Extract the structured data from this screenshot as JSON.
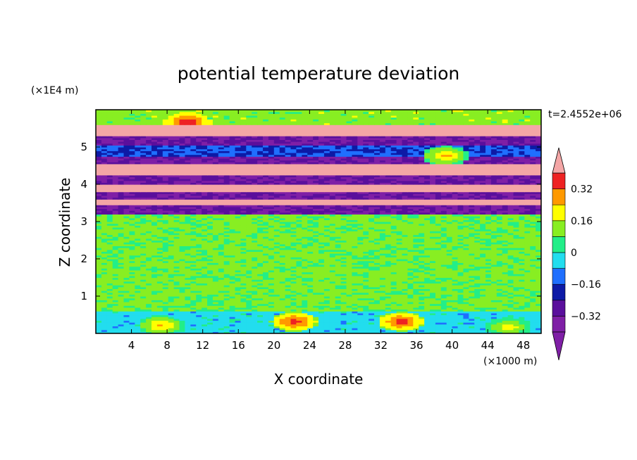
{
  "chart_data": {
    "type": "heatmap",
    "title": "potential temperature deviation",
    "time_label": "t=2.4552e+06",
    "xlabel": "X coordinate",
    "ylabel": "Z coordinate",
    "x_unit": "(×1000 m)",
    "y_unit": "(×1E4 m)",
    "xlim": [
      0,
      50
    ],
    "ylim": [
      0,
      6
    ],
    "x_ticks": [
      "4",
      "8",
      "12",
      "16",
      "20",
      "24",
      "28",
      "32",
      "36",
      "40",
      "44",
      "48"
    ],
    "y_ticks": [
      "1",
      "2",
      "3",
      "4",
      "5"
    ],
    "colorbar": {
      "levels": [
        -0.4,
        -0.32,
        -0.24,
        -0.16,
        -0.08,
        0,
        0.08,
        0.16,
        0.24,
        0.32,
        0.4
      ],
      "colors": [
        "#7f1fa6",
        "#5a0f9c",
        "#0d1aa6",
        "#1f6fff",
        "#22ddee",
        "#22ee88",
        "#88ee22",
        "#ffff00",
        "#ff9900",
        "#ee2222",
        "#f4a6a6"
      ],
      "tick_labels": [
        "0.32",
        "0.16",
        "0",
        "−0.16",
        "−0.32"
      ],
      "tick_values": [
        0.32,
        0.16,
        0,
        -0.16,
        -0.32
      ]
    },
    "bands": [
      {
        "z": [
          0.0,
          0.6
        ],
        "value": -0.12,
        "note": "mixed blue/green layer with warm cores near x=22 and x=34"
      },
      {
        "z": [
          0.6,
          3.2
        ],
        "value": 0.02
      },
      {
        "z": [
          3.2,
          3.45
        ],
        "value": -0.4
      },
      {
        "z": [
          3.45,
          3.6
        ],
        "value": 0.4
      },
      {
        "z": [
          3.6,
          3.8
        ],
        "value": -0.4
      },
      {
        "z": [
          3.8,
          4.0
        ],
        "value": 0.4
      },
      {
        "z": [
          4.0,
          4.25
        ],
        "value": -0.4
      },
      {
        "z": [
          4.25,
          4.55
        ],
        "value": 0.4
      },
      {
        "z": [
          4.55,
          4.75
        ],
        "value": -0.4
      },
      {
        "z": [
          4.75,
          5.05
        ],
        "value": -0.24
      },
      {
        "z": [
          5.05,
          5.3
        ],
        "value": -0.4
      },
      {
        "z": [
          5.3,
          5.6
        ],
        "value": 0.4
      },
      {
        "z": [
          5.6,
          6.0
        ],
        "value": 0.04
      }
    ],
    "hotspots": [
      {
        "x": 22,
        "z": 0.3,
        "value": 0.3
      },
      {
        "x": 34,
        "z": 0.3,
        "value": 0.3
      },
      {
        "x": 7,
        "z": 0.2,
        "value": 0.2
      },
      {
        "x": 46,
        "z": 0.15,
        "value": 0.16
      },
      {
        "x": 39,
        "z": 4.75,
        "value": 0.2
      },
      {
        "x": 10,
        "z": 5.65,
        "value": 0.32
      }
    ]
  }
}
